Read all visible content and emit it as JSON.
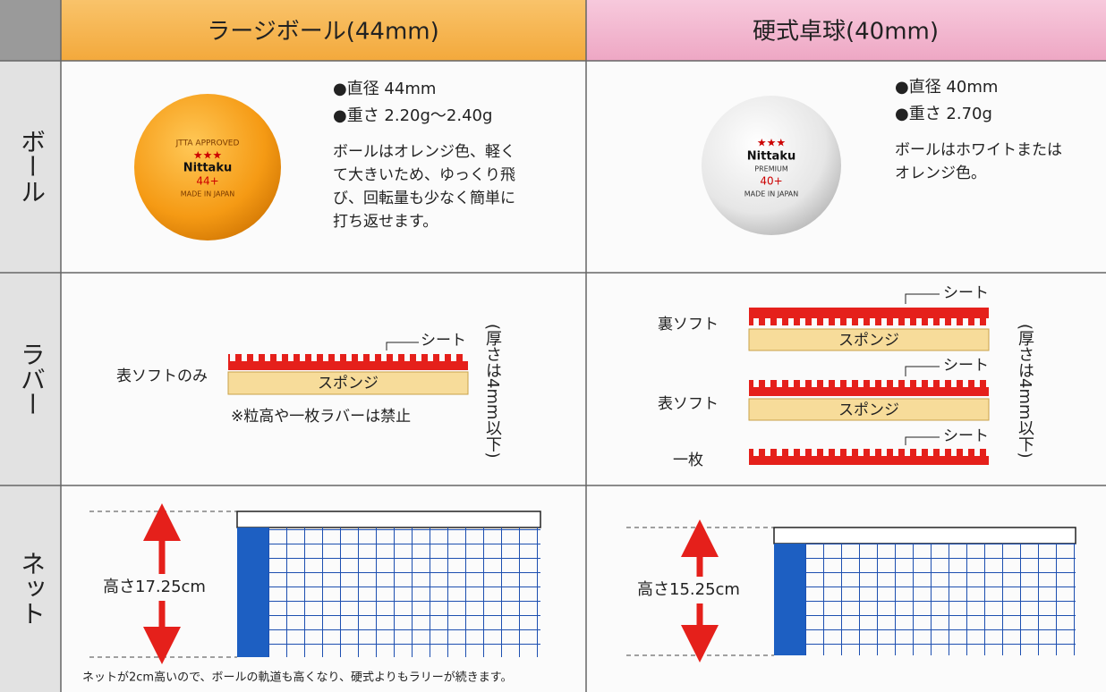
{
  "header": {
    "columns": [
      "ラージボール(44mm)",
      "硬式卓球(40mm)"
    ]
  },
  "rows": [
    "ボール",
    "ラバー",
    "ネット"
  ],
  "large": {
    "ball": {
      "print": [
        "JTTA APPROVED",
        "★★★",
        "Nittaku",
        "44+",
        "MADE IN JAPAN"
      ],
      "specs": [
        "●直径 44mm",
        "●重さ 2.20g〜2.40g"
      ],
      "description": [
        "ボールはオレンジ色、軽く",
        "て大きいため、ゆっくり飛",
        "び、回転量も少なく簡単に",
        "打ち返せます。"
      ]
    },
    "rubber": {
      "label": "表ソフトのみ",
      "sheet": "シート",
      "sponge": "スポンジ",
      "note": "※粒高や一枚ラバーは禁止",
      "thickness": "(厚さは4mm以下)"
    },
    "net": {
      "height": "高さ17.25cm",
      "note": "ネットが2cm高いので、ボールの軌道も高くなり、硬式よりもラリーが続きます。"
    }
  },
  "hard": {
    "ball": {
      "print": [
        "★★★",
        "Nittaku",
        "PREMIUM",
        "40+",
        "MADE IN JAPAN"
      ],
      "specs": [
        "●直径 40mm",
        "●重さ 2.70g"
      ],
      "description": [
        "ボールはホワイトまたは",
        "オレンジ色。"
      ]
    },
    "rubber": {
      "types": [
        "裏ソフト",
        "表ソフト",
        "一枚"
      ],
      "sheet": [
        "シート",
        "シート",
        "シート"
      ],
      "sponge": [
        "スポンジ",
        "スポンジ"
      ],
      "thickness": "(厚さは4mm以下)"
    },
    "net": {
      "height": "高さ15.25cm"
    }
  }
}
